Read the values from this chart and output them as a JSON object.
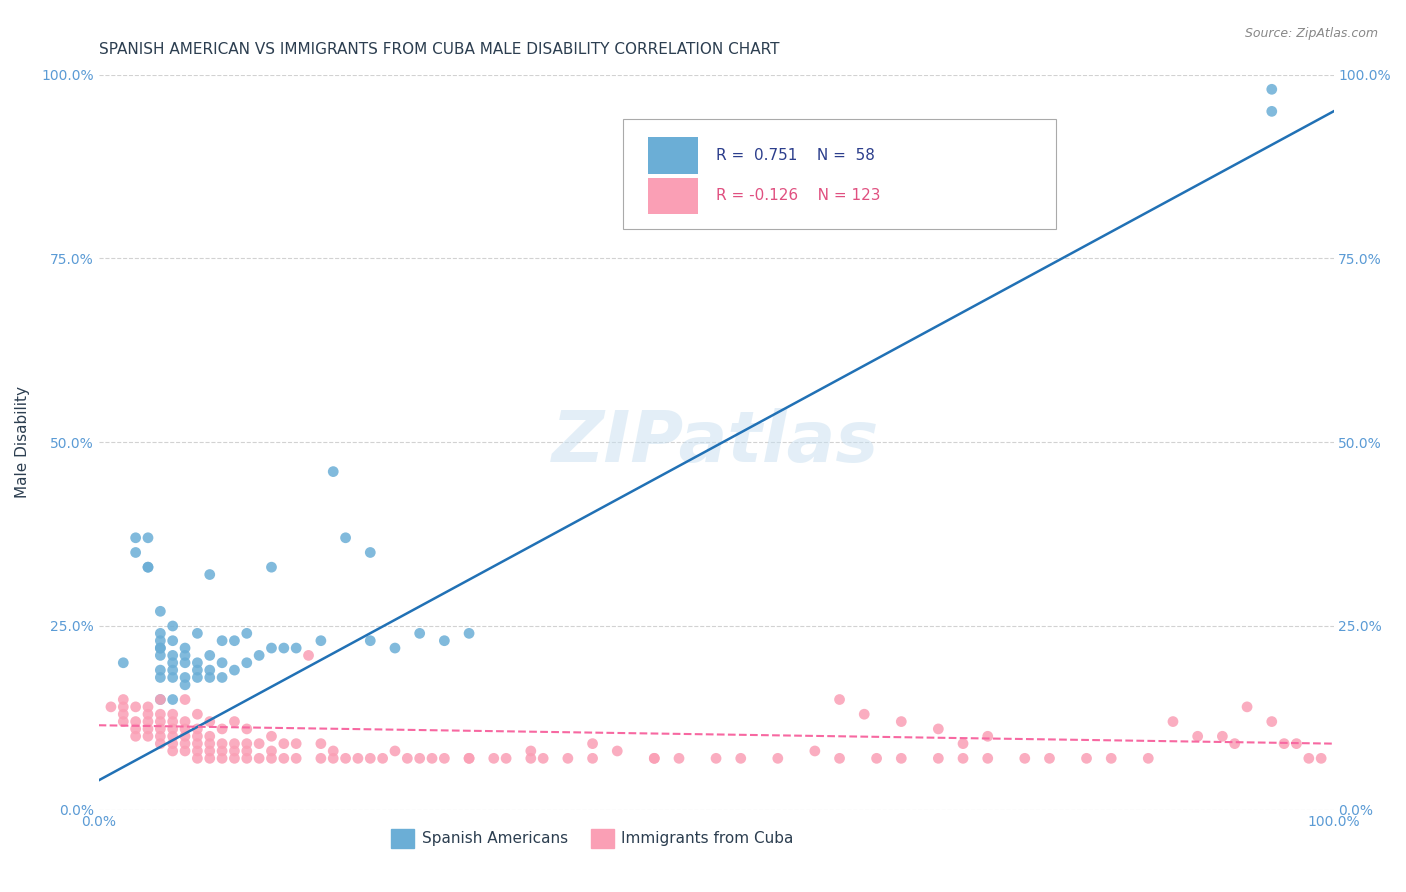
{
  "title": "SPANISH AMERICAN VS IMMIGRANTS FROM CUBA MALE DISABILITY CORRELATION CHART",
  "source": "Source: ZipAtlas.com",
  "ylabel": "Male Disability",
  "xlabel": "",
  "xlim": [
    0.0,
    1.0
  ],
  "ylim": [
    0.0,
    1.0
  ],
  "xtick_labels": [
    "0.0%",
    "100.0%"
  ],
  "ytick_labels": [
    "0.0%",
    "25.0%",
    "50.0%",
    "75.0%",
    "100.0%"
  ],
  "ytick_positions": [
    0.0,
    0.25,
    0.5,
    0.75,
    1.0
  ],
  "watermark": "ZIPatlas",
  "legend_r1": "R =  0.751",
  "legend_n1": "N =  58",
  "legend_r2": "R = -0.126",
  "legend_n2": "N = 123",
  "blue_color": "#6baed6",
  "pink_color": "#fa9fb5",
  "blue_line_color": "#2171b5",
  "pink_line_color": "#f768a1",
  "title_color": "#2c3e50",
  "axis_label_color": "#2c3e50",
  "tick_color": "#5b9bd5",
  "grid_color": "#c0c0c0",
  "background_color": "#ffffff",
  "blue_scatter_x": [
    0.02,
    0.03,
    0.03,
    0.04,
    0.04,
    0.04,
    0.05,
    0.05,
    0.05,
    0.05,
    0.05,
    0.05,
    0.05,
    0.05,
    0.05,
    0.06,
    0.06,
    0.06,
    0.06,
    0.06,
    0.06,
    0.06,
    0.07,
    0.07,
    0.07,
    0.07,
    0.07,
    0.08,
    0.08,
    0.08,
    0.08,
    0.09,
    0.09,
    0.09,
    0.09,
    0.1,
    0.1,
    0.1,
    0.11,
    0.11,
    0.12,
    0.12,
    0.13,
    0.14,
    0.14,
    0.15,
    0.16,
    0.18,
    0.19,
    0.2,
    0.22,
    0.22,
    0.24,
    0.26,
    0.28,
    0.3,
    0.95,
    0.95
  ],
  "blue_scatter_y": [
    0.2,
    0.35,
    0.37,
    0.33,
    0.33,
    0.37,
    0.15,
    0.18,
    0.19,
    0.21,
    0.22,
    0.22,
    0.23,
    0.24,
    0.27,
    0.15,
    0.18,
    0.19,
    0.2,
    0.21,
    0.23,
    0.25,
    0.17,
    0.18,
    0.2,
    0.21,
    0.22,
    0.18,
    0.19,
    0.2,
    0.24,
    0.18,
    0.19,
    0.21,
    0.32,
    0.18,
    0.2,
    0.23,
    0.19,
    0.23,
    0.2,
    0.24,
    0.21,
    0.22,
    0.33,
    0.22,
    0.22,
    0.23,
    0.46,
    0.37,
    0.23,
    0.35,
    0.22,
    0.24,
    0.23,
    0.24,
    0.98,
    0.95
  ],
  "pink_scatter_x": [
    0.01,
    0.02,
    0.02,
    0.02,
    0.02,
    0.03,
    0.03,
    0.03,
    0.03,
    0.04,
    0.04,
    0.04,
    0.04,
    0.04,
    0.05,
    0.05,
    0.05,
    0.05,
    0.05,
    0.05,
    0.06,
    0.06,
    0.06,
    0.06,
    0.06,
    0.06,
    0.07,
    0.07,
    0.07,
    0.07,
    0.07,
    0.07,
    0.08,
    0.08,
    0.08,
    0.08,
    0.08,
    0.08,
    0.09,
    0.09,
    0.09,
    0.09,
    0.09,
    0.1,
    0.1,
    0.1,
    0.1,
    0.11,
    0.11,
    0.11,
    0.11,
    0.12,
    0.12,
    0.12,
    0.12,
    0.13,
    0.13,
    0.14,
    0.14,
    0.14,
    0.15,
    0.15,
    0.16,
    0.16,
    0.17,
    0.18,
    0.18,
    0.19,
    0.19,
    0.2,
    0.21,
    0.22,
    0.23,
    0.24,
    0.25,
    0.26,
    0.27,
    0.28,
    0.3,
    0.32,
    0.33,
    0.35,
    0.36,
    0.38,
    0.4,
    0.42,
    0.45,
    0.47,
    0.5,
    0.52,
    0.55,
    0.58,
    0.6,
    0.63,
    0.65,
    0.68,
    0.7,
    0.72,
    0.75,
    0.77,
    0.8,
    0.82,
    0.85,
    0.87,
    0.89,
    0.91,
    0.92,
    0.93,
    0.95,
    0.96,
    0.97,
    0.98,
    0.99,
    0.6,
    0.62,
    0.65,
    0.68,
    0.7,
    0.72,
    0.3,
    0.35,
    0.4,
    0.45
  ],
  "pink_scatter_y": [
    0.14,
    0.12,
    0.13,
    0.14,
    0.15,
    0.1,
    0.11,
    0.12,
    0.14,
    0.1,
    0.11,
    0.12,
    0.13,
    0.14,
    0.09,
    0.1,
    0.11,
    0.12,
    0.13,
    0.15,
    0.08,
    0.09,
    0.1,
    0.11,
    0.12,
    0.13,
    0.08,
    0.09,
    0.1,
    0.11,
    0.12,
    0.15,
    0.07,
    0.08,
    0.09,
    0.1,
    0.11,
    0.13,
    0.07,
    0.08,
    0.09,
    0.1,
    0.12,
    0.07,
    0.08,
    0.09,
    0.11,
    0.07,
    0.08,
    0.09,
    0.12,
    0.07,
    0.08,
    0.09,
    0.11,
    0.07,
    0.09,
    0.07,
    0.08,
    0.1,
    0.07,
    0.09,
    0.07,
    0.09,
    0.21,
    0.07,
    0.09,
    0.07,
    0.08,
    0.07,
    0.07,
    0.07,
    0.07,
    0.08,
    0.07,
    0.07,
    0.07,
    0.07,
    0.07,
    0.07,
    0.07,
    0.07,
    0.07,
    0.07,
    0.07,
    0.08,
    0.07,
    0.07,
    0.07,
    0.07,
    0.07,
    0.08,
    0.07,
    0.07,
    0.07,
    0.07,
    0.07,
    0.07,
    0.07,
    0.07,
    0.07,
    0.07,
    0.07,
    0.12,
    0.1,
    0.1,
    0.09,
    0.14,
    0.12,
    0.09,
    0.09,
    0.07,
    0.07,
    0.15,
    0.13,
    0.12,
    0.11,
    0.09,
    0.1,
    0.07,
    0.08,
    0.09,
    0.07
  ]
}
